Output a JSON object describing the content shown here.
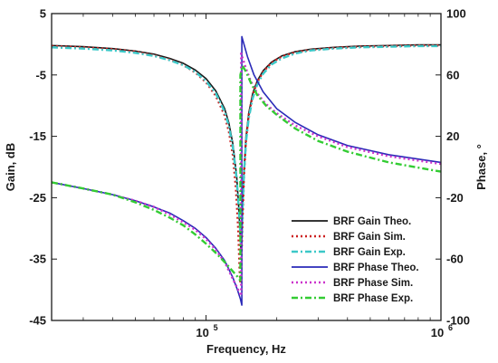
{
  "chart_data": {
    "type": "line",
    "title": "",
    "xlabel": "Frequency, Hz",
    "ylabel_left": "Gain, dB",
    "ylabel_right": "Phase, °",
    "x_scale": "log",
    "xlim": [
      22000,
      1000000
    ],
    "ylim_left": [
      -45,
      5
    ],
    "ylim_right": [
      -100,
      100
    ],
    "x_ticks": [
      {
        "value": 100000,
        "base": "10",
        "exp": "5"
      },
      {
        "value": 1000000,
        "base": "10",
        "exp": "6"
      }
    ],
    "y_ticks_left": [
      5,
      -5,
      -15,
      -25,
      -35,
      -45
    ],
    "y_ticks_right": [
      100,
      60,
      20,
      -20,
      -60,
      -100
    ],
    "grid": false,
    "legend_position": "lower-right",
    "series": [
      {
        "name": "BRF Gain Theo.",
        "axis": "left",
        "color": "#1a1a1a",
        "style": "solid",
        "x": [
          22000,
          30000,
          40000,
          50000,
          60000,
          70000,
          80000,
          90000,
          100000,
          110000,
          120000,
          125000,
          130000,
          135000,
          138000,
          140000,
          141000,
          142000,
          143000,
          145000,
          148000,
          152000,
          158000,
          165000,
          175000,
          190000,
          210000,
          240000,
          280000,
          350000,
          450000,
          600000,
          800000,
          1000000
        ],
        "y": [
          -0.2,
          -0.4,
          -0.7,
          -1.1,
          -1.6,
          -2.3,
          -3.1,
          -4.2,
          -5.6,
          -7.6,
          -10.5,
          -12.8,
          -16.2,
          -21.5,
          -27.0,
          -32.0,
          -34.0,
          -32.0,
          -27.0,
          -20.5,
          -15.0,
          -11.2,
          -8.0,
          -6.0,
          -4.3,
          -2.9,
          -1.9,
          -1.2,
          -0.8,
          -0.5,
          -0.3,
          -0.2,
          -0.1,
          -0.1
        ]
      },
      {
        "name": "BRF Gain Sim.",
        "axis": "left",
        "color": "#cc1f1f",
        "style": "dotted",
        "x": [
          22000,
          30000,
          40000,
          50000,
          60000,
          70000,
          80000,
          90000,
          100000,
          110000,
          120000,
          125000,
          130000,
          134000,
          137000,
          139000,
          140000,
          141000,
          143000,
          145000,
          148000,
          152000,
          158000,
          165000,
          175000,
          190000,
          210000,
          240000,
          280000,
          350000,
          450000,
          600000,
          800000,
          1000000
        ],
        "y": [
          -0.3,
          -0.5,
          -0.8,
          -1.2,
          -1.8,
          -2.5,
          -3.4,
          -4.6,
          -6.2,
          -8.4,
          -11.6,
          -14.2,
          -18.0,
          -23.5,
          -30.0,
          -37.0,
          -39.0,
          -36.5,
          -28.5,
          -21.5,
          -15.5,
          -11.5,
          -8.2,
          -6.2,
          -4.5,
          -3.0,
          -2.0,
          -1.3,
          -0.9,
          -0.6,
          -0.4,
          -0.3,
          -0.2,
          -0.2
        ]
      },
      {
        "name": "BRF Gain Exp.",
        "axis": "left",
        "color": "#3cc8c8",
        "style": "dashdot",
        "x": [
          22000,
          30000,
          40000,
          50000,
          60000,
          70000,
          80000,
          90000,
          100000,
          110000,
          120000,
          125000,
          130000,
          135000,
          138000,
          140000,
          141000,
          142000,
          143000,
          145000,
          148000,
          152000,
          158000,
          165000,
          175000,
          190000,
          210000,
          240000,
          280000,
          350000,
          450000,
          600000,
          800000,
          1000000
        ],
        "y": [
          -0.5,
          -0.7,
          -1.0,
          -1.4,
          -1.9,
          -2.6,
          -3.4,
          -4.5,
          -6.0,
          -8.0,
          -11.0,
          -13.3,
          -16.8,
          -22.0,
          -27.0,
          -31.0,
          -32.5,
          -31.0,
          -27.0,
          -21.0,
          -15.8,
          -12.0,
          -8.8,
          -6.6,
          -4.8,
          -3.3,
          -2.3,
          -1.5,
          -1.0,
          -0.7,
          -0.5,
          -0.4,
          -0.3,
          -0.3
        ]
      },
      {
        "name": "BRF Phase Theo.",
        "axis": "right",
        "color": "#2a2ab8",
        "style": "solid",
        "x": [
          22000,
          30000,
          40000,
          50000,
          60000,
          70000,
          80000,
          90000,
          100000,
          110000,
          120000,
          130000,
          136000,
          140000,
          142000,
          142001,
          145000,
          150000,
          160000,
          175000,
          200000,
          240000,
          300000,
          400000,
          600000,
          1000000
        ],
        "y": [
          -10.0,
          -14.0,
          -18.0,
          -22.0,
          -26.0,
          -30.0,
          -35.0,
          -40.0,
          -46.0,
          -53.0,
          -61.0,
          -72.0,
          -80.0,
          -86.0,
          -90.0,
          85.0,
          80.0,
          72.0,
          60.0,
          49.0,
          38.0,
          29.0,
          21.0,
          14.0,
          8.0,
          3.0
        ]
      },
      {
        "name": "BRF Phase Sim.",
        "axis": "right",
        "color": "#cc33cc",
        "style": "dotted",
        "x": [
          22000,
          30000,
          40000,
          50000,
          60000,
          70000,
          80000,
          90000,
          100000,
          110000,
          120000,
          130000,
          137000,
          141000,
          141001,
          143000,
          148000,
          155000,
          165000,
          180000,
          200000,
          240000,
          300000,
          400000,
          600000,
          1000000
        ],
        "y": [
          -10.0,
          -14.0,
          -18.0,
          -22.0,
          -26.0,
          -31.0,
          -36.0,
          -41.0,
          -47.0,
          -54.0,
          -62.0,
          -73.0,
          -80.0,
          -84.0,
          74.0,
          71.0,
          64.0,
          56.0,
          48.0,
          41.0,
          35.0,
          27.0,
          20.0,
          13.0,
          7.0,
          2.0
        ]
      },
      {
        "name": "BRF Phase Exp.",
        "axis": "right",
        "color": "#33cc33",
        "style": "dashdot",
        "x": [
          22000,
          30000,
          40000,
          50000,
          60000,
          70000,
          80000,
          90000,
          100000,
          110000,
          120000,
          130000,
          137000,
          140000,
          140001,
          143000,
          148000,
          155000,
          165000,
          180000,
          200000,
          240000,
          300000,
          400000,
          600000,
          1000000
        ],
        "y": [
          -10.0,
          -14.0,
          -18.0,
          -23.0,
          -28.0,
          -33.0,
          -38.0,
          -44.0,
          -50.0,
          -56.0,
          -62.0,
          -68.0,
          -72.0,
          -74.0,
          60.0,
          66.0,
          62.0,
          55.0,
          47.0,
          40.0,
          34.0,
          25.0,
          17.0,
          10.0,
          3.0,
          -3.0
        ]
      }
    ]
  }
}
